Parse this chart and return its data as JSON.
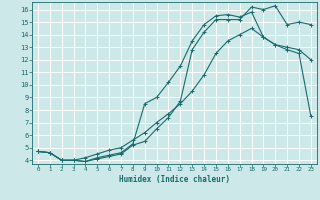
{
  "xlabel": "Humidex (Indice chaleur)",
  "bg_color": "#cce8e8",
  "grid_color": "#ffffff",
  "line_color": "#1a6b6b",
  "xlim": [
    -0.5,
    23.5
  ],
  "ylim": [
    3.7,
    16.6
  ],
  "xticks": [
    0,
    1,
    2,
    3,
    4,
    5,
    6,
    7,
    8,
    9,
    10,
    11,
    12,
    13,
    14,
    15,
    16,
    17,
    18,
    19,
    20,
    21,
    22,
    23
  ],
  "yticks": [
    4,
    5,
    6,
    7,
    8,
    9,
    10,
    11,
    12,
    13,
    14,
    15,
    16
  ],
  "curve1_x": [
    0,
    1,
    2,
    3,
    4,
    5,
    6,
    7,
    8,
    9,
    10,
    11,
    12,
    13,
    14,
    15,
    16,
    17,
    18,
    19,
    20,
    21,
    22,
    23
  ],
  "curve1_y": [
    4.7,
    4.6,
    4.0,
    4.0,
    3.9,
    4.1,
    4.3,
    4.5,
    5.2,
    5.5,
    6.5,
    7.4,
    8.7,
    12.8,
    14.2,
    15.2,
    15.2,
    15.2,
    16.2,
    16.0,
    16.3,
    14.8,
    15.0,
    14.8
  ],
  "curve2_x": [
    0,
    1,
    2,
    3,
    4,
    5,
    6,
    7,
    8,
    9,
    10,
    11,
    12,
    13,
    14,
    15,
    16,
    17,
    18,
    19,
    20,
    21,
    22,
    23
  ],
  "curve2_y": [
    4.7,
    4.6,
    4.0,
    4.0,
    3.9,
    4.2,
    4.4,
    4.6,
    5.3,
    8.5,
    9.0,
    10.2,
    11.5,
    13.5,
    14.8,
    15.5,
    15.6,
    15.4,
    15.8,
    13.8,
    13.2,
    13.0,
    12.8,
    12.0
  ],
  "curve3_x": [
    0,
    1,
    2,
    3,
    4,
    5,
    6,
    7,
    8,
    9,
    10,
    11,
    12,
    13,
    14,
    15,
    16,
    17,
    18,
    19,
    20,
    21,
    22,
    23
  ],
  "curve3_y": [
    4.7,
    4.6,
    4.0,
    4.0,
    4.2,
    4.5,
    4.8,
    5.0,
    5.6,
    6.2,
    7.0,
    7.7,
    8.5,
    9.5,
    10.8,
    12.5,
    13.5,
    14.0,
    14.5,
    13.8,
    13.2,
    12.8,
    12.5,
    7.5
  ]
}
